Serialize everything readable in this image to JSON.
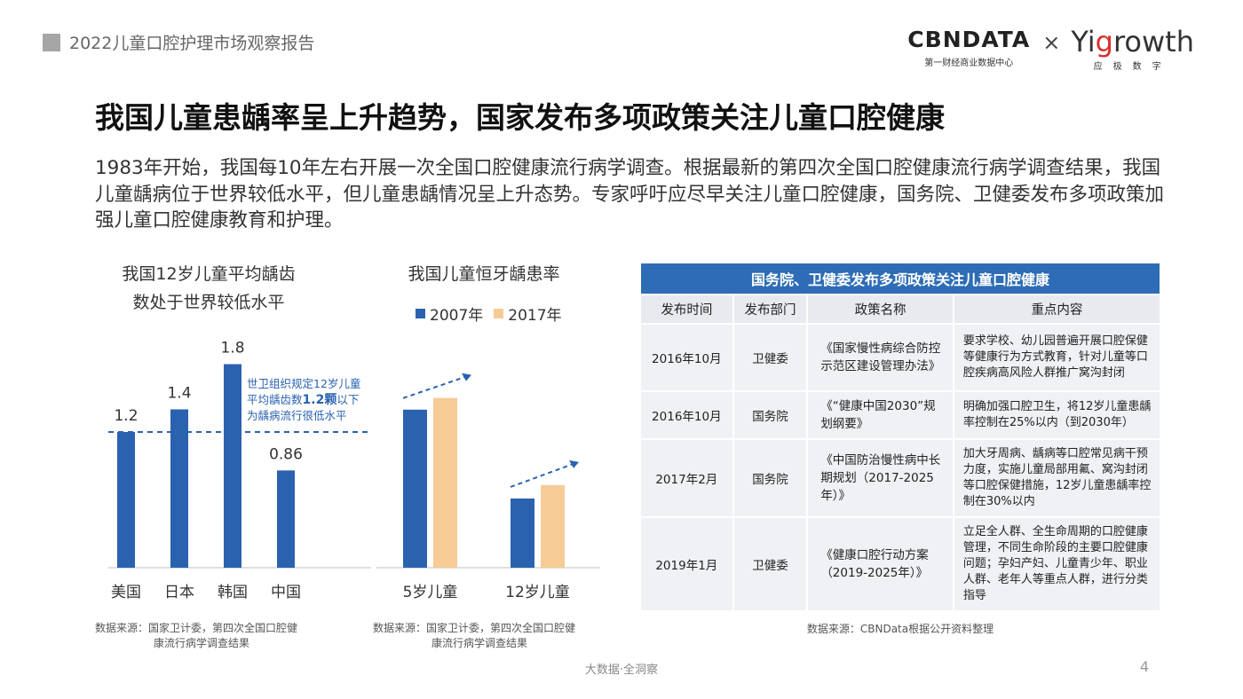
{
  "header": {
    "report_title": "2022儿童口腔护理市场观察报告"
  },
  "logos": {
    "cbn_name": "CBNDATA",
    "cbn_sub": "第一财经商业数据中心",
    "times": "×",
    "yig_pre": "Yi",
    "yig_g": "g",
    "yig_post": "rowth",
    "yig_sub": "应极数字"
  },
  "title": "我国儿童患龋率呈上升趋势，国家发布多项政策关注儿童口腔健康",
  "intro": "1983年开始，我国每10年左右开展一次全国口腔健康流行病学调查。根据最新的第四次全国口腔健康流行病学调查结果，我国儿童龋病位于世界较低水平，但儿童患龋情况呈上升态势。专家呼吁应尽早关注儿童口腔健康，国务院、卫健委发布多项政策加强儿童口腔健康教育和护理。",
  "chart1": {
    "title_line1": "我国12岁儿童平均龋齿",
    "title_line2": "数处于世界较低水平",
    "annotation_line1": "世卫组织规定12岁儿童",
    "annotation_line2_pre": "平均龋齿数",
    "annotation_line2_bold": "1.2颗",
    "annotation_line2_post": "以下",
    "annotation_line3": "为龋病流行很低水平",
    "source_line1": "数据来源：国家卫计委，第四次全国口腔健",
    "source_line2": "康流行病学调查结果"
  },
  "chart2": {
    "title": "我国儿童恒牙龋患率",
    "source_line1": "数据来源：国家卫计委，第四次全国口腔健",
    "source_line2": "康流行病学调查结果"
  },
  "chart_data": [
    {
      "type": "bar",
      "title": "我国12岁儿童平均龋齿数处于世界较低水平",
      "categories": [
        "美国",
        "日本",
        "韩国",
        "中国"
      ],
      "values": [
        1.2,
        1.4,
        1.8,
        0.86
      ],
      "value_labels": [
        "1.2",
        "1.4",
        "1.8",
        "0.86"
      ],
      "reference_line": 1.2,
      "ylim": [
        0,
        2.0
      ],
      "color": "#2a62b0",
      "grid": false
    },
    {
      "type": "bar",
      "title": "我国儿童恒牙龋患率",
      "categories": [
        "5岁儿童",
        "12岁儿童"
      ],
      "series": [
        {
          "name": "2007年",
          "values": [
            66.0,
            28.9
          ],
          "color": "#2a62b0"
        },
        {
          "name": "2017年",
          "values": [
            70.9,
            34.5
          ],
          "color": "#f7cb95"
        }
      ],
      "ylim": [
        0,
        100
      ],
      "legend": "top",
      "grid": false
    }
  ],
  "table": {
    "title": "国务院、卫健委发布多项政策关注儿童口腔健康",
    "headers": [
      "发布时间",
      "发布部门",
      "政策名称",
      "重点内容"
    ],
    "rows": [
      {
        "date": "2016年10月",
        "dept": "卫健委",
        "name": "《国家慢性病综合防控示范区建设管理办法》",
        "content": "要求学校、幼儿园普遍开展口腔保健等健康行为方式教育，针对儿童等口腔疾病高风险人群推广窝沟封闭"
      },
      {
        "date": "2016年10月",
        "dept": "国务院",
        "name": "《“健康中国2030”规划纲要》",
        "content": "明确加强口腔卫生，将12岁儿童患龋率控制在25%以内（到2030年）"
      },
      {
        "date": "2017年2月",
        "dept": "国务院",
        "name": "《中国防治慢性病中长期规划（2017-2025年）》",
        "content": "加大牙周病、龋病等口腔常见病干预力度，实施儿童局部用氟、窝沟封闭等口腔保健措施，12岁儿童患龋率控制在30%以内"
      },
      {
        "date": "2019年1月",
        "dept": "卫健委",
        "name": "《健康口腔行动方案（2019-2025年）》",
        "content": "立足全人群、全生命周期的口腔健康管理，不同生命阶段的主要口腔健康问题；孕妇产妇、儿童青少年、职业人群、老年人等重点人群，进行分类指导"
      }
    ],
    "source": "数据来源：CBNData根据公开资料整理"
  },
  "footer": {
    "text": "大数据·全洞察",
    "page": "4"
  }
}
